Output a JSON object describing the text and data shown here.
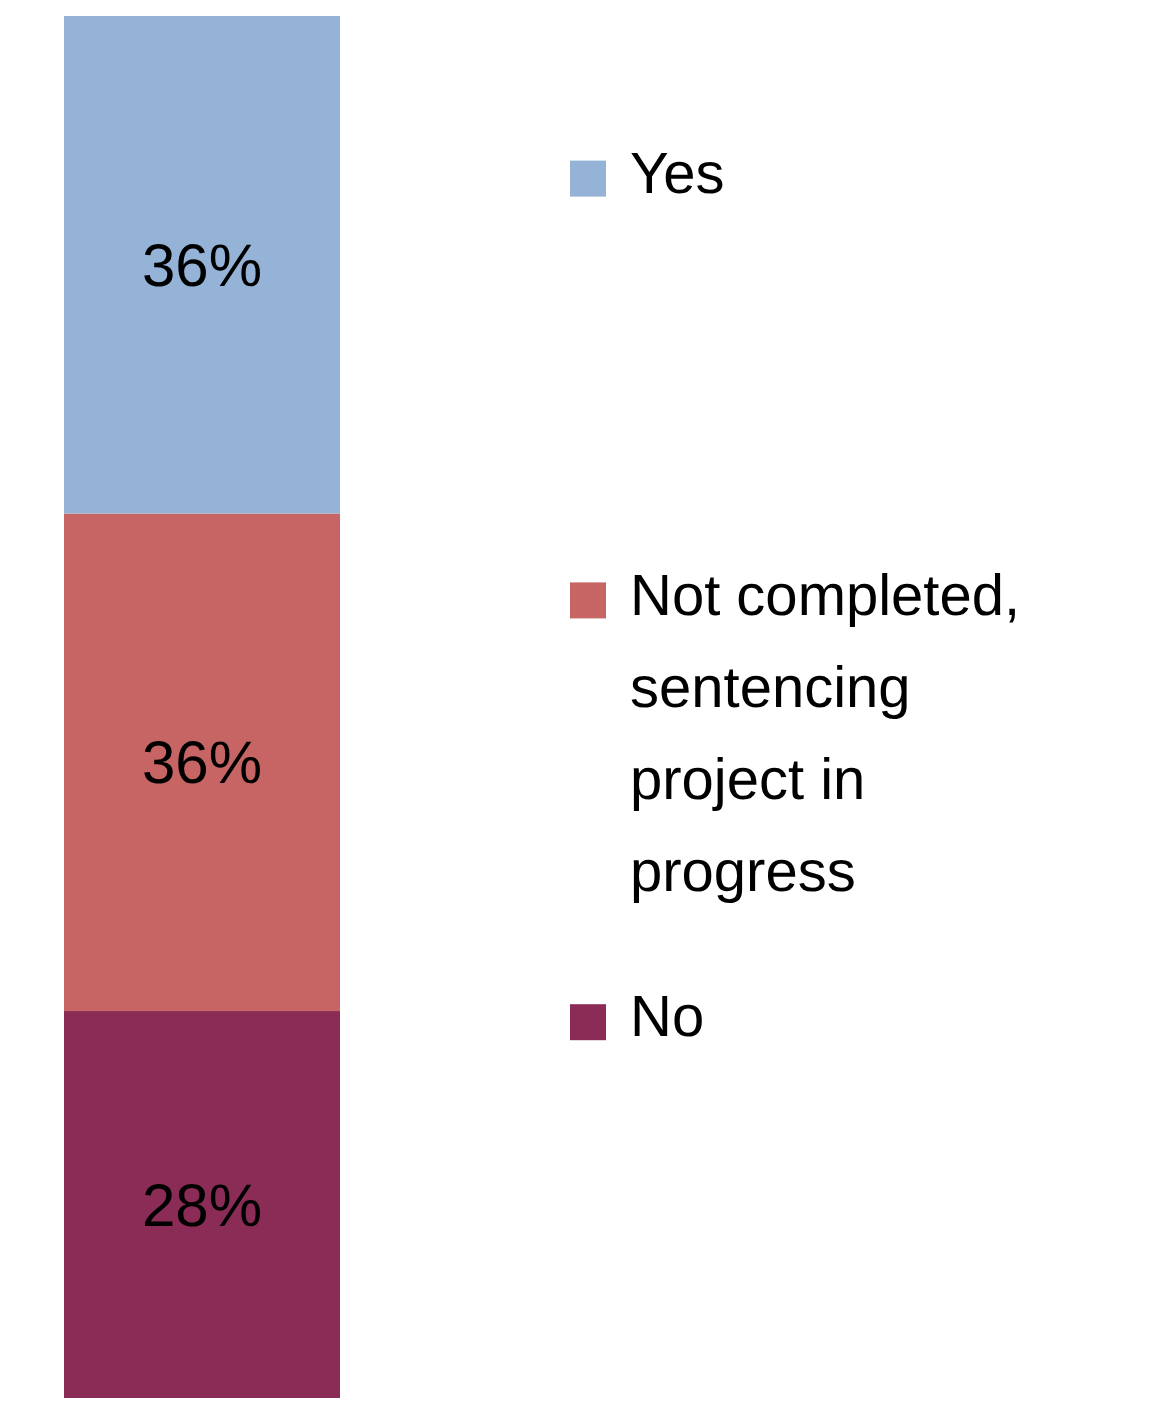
{
  "chart_data": {
    "type": "bar",
    "stacked": true,
    "categories": [
      null
    ],
    "legend": "right",
    "series": [
      {
        "name": "No",
        "color": "#8b2c57",
        "values": [
          28
        ],
        "value_labels": [
          "28%"
        ]
      },
      {
        "name": "Not completed, sentencing project in progress",
        "color": "#c66563",
        "values": [
          36
        ],
        "value_labels": [
          "36%"
        ]
      },
      {
        "name": "Yes",
        "color": "#95b3d7",
        "values": [
          36
        ],
        "value_labels": [
          "36%"
        ]
      }
    ]
  }
}
